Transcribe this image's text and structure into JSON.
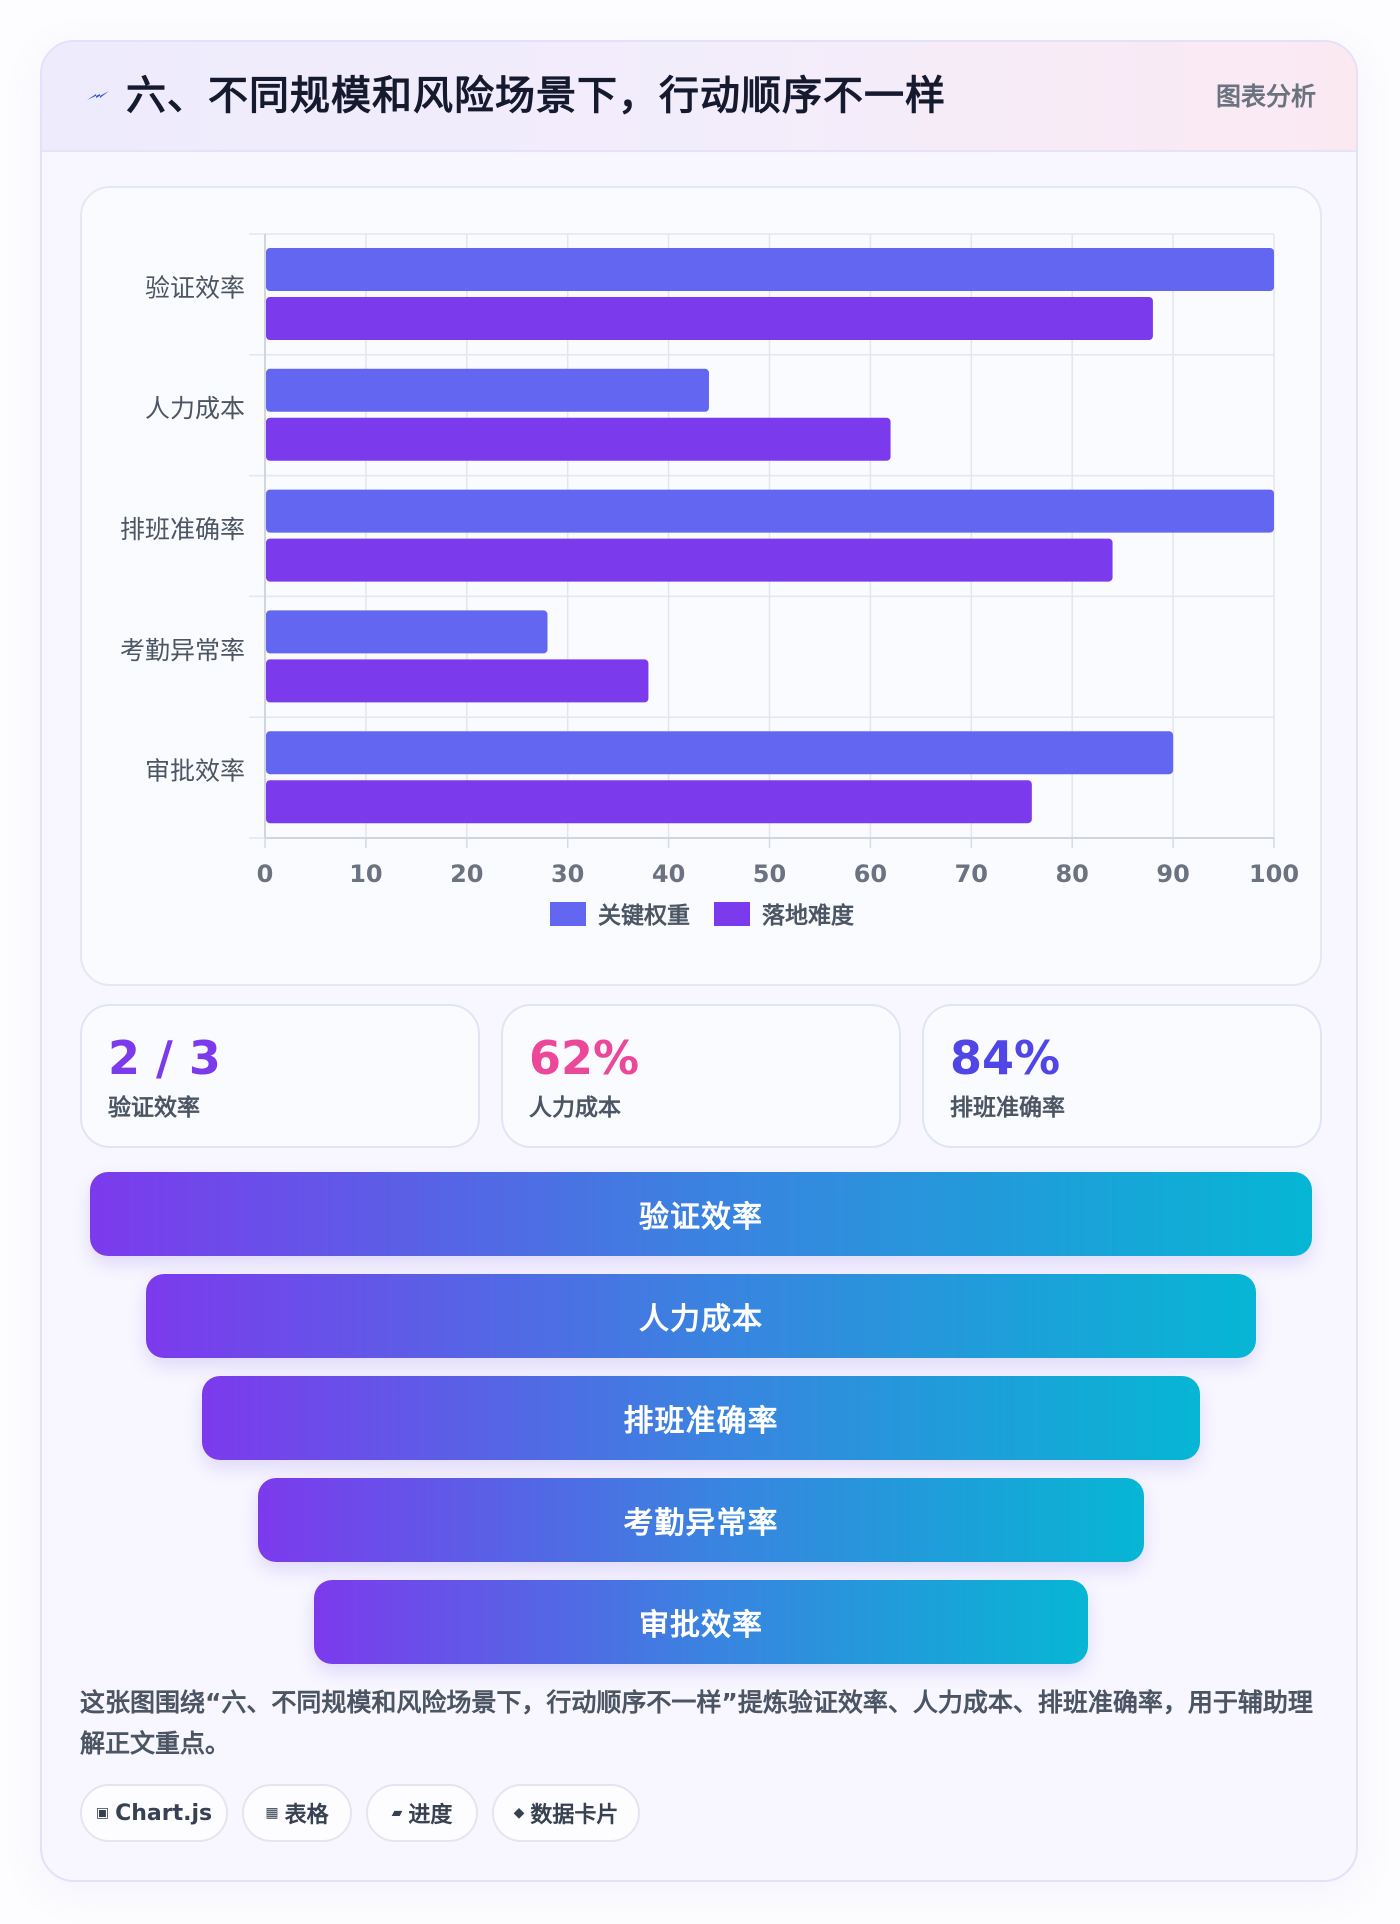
{
  "header": {
    "title": "六、不同规模和风险场景下，行动顺序不一样",
    "tag": "图表分析",
    "icon": "lightning-icon"
  },
  "chart_data": {
    "type": "bar",
    "orientation": "horizontal",
    "categories": [
      "验证效率",
      "人力成本",
      "排班准确率",
      "考勤异常率",
      "审批效率"
    ],
    "series": [
      {
        "name": "关键权重",
        "color": "#6366f1",
        "values": [
          100,
          44,
          100,
          28,
          90
        ]
      },
      {
        "name": "落地难度",
        "color": "#7c3aed",
        "values": [
          88,
          62,
          84,
          38,
          76
        ]
      }
    ],
    "xlim": [
      0,
      100
    ],
    "xticks": [
      0,
      10,
      20,
      30,
      40,
      50,
      60,
      70,
      80,
      90,
      100
    ],
    "grid": true,
    "legend_position": "bottom"
  },
  "stats": [
    {
      "value": "2 / 3",
      "label": "验证效率",
      "color": "#7c3aed"
    },
    {
      "value": "62%",
      "label": "人力成本",
      "color": "#ec4899"
    },
    {
      "value": "84%",
      "label": "排班准确率",
      "color": "#4f46e5"
    }
  ],
  "funnel": [
    "验证效率",
    "人力成本",
    "排班准确率",
    "考勤异常率",
    "审批效率"
  ],
  "description": "这张图围绕“六、不同规模和风险场景下，行动顺序不一样”提炼验证效率、人力成本、排班准确率，用于辅助理解正文重点。",
  "chips": [
    {
      "icon": "▣",
      "label": "Chart.js"
    },
    {
      "icon": "▦",
      "label": "表格"
    },
    {
      "icon": "▰",
      "label": "进度"
    },
    {
      "icon": "◆",
      "label": "数据卡片"
    }
  ]
}
